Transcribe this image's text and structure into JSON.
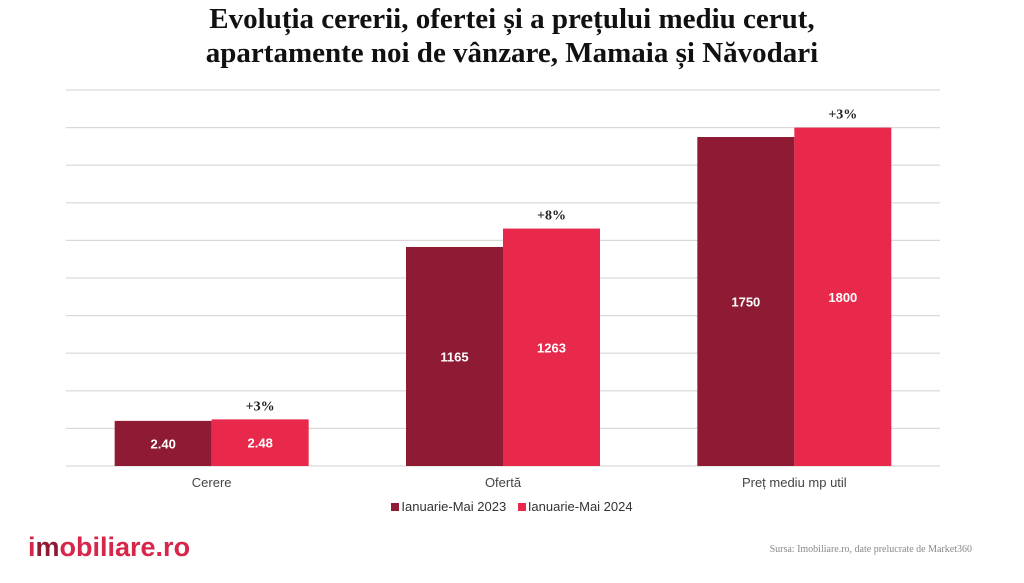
{
  "chart_data": {
    "type": "bar",
    "title_lines": [
      "Evoluția cererii, ofertei și a prețului mediu cerut,",
      "apartamente noi de vânzare, Mamaia și Năvodari"
    ],
    "categories": [
      "Cerere",
      "Ofertă",
      "Preț mediu mp util"
    ],
    "series": [
      {
        "name": "Ianuarie-Mai 2023",
        "color": "#8f1a33",
        "values": [
          2.4,
          1165,
          1750
        ],
        "labels": [
          "2.40",
          "1165",
          "1750"
        ]
      },
      {
        "name": "Ianuarie-Mai 2024",
        "color": "#e8294c",
        "values": [
          2.48,
          1263,
          1800
        ],
        "labels": [
          "2.48",
          "1263",
          "1800"
        ]
      }
    ],
    "annotations": [
      "+3%",
      "+8%",
      "+3%"
    ],
    "ylim": [
      0,
      2000
    ],
    "grid": true,
    "y_tick_labels_shown": false,
    "legend_position": "bottom"
  },
  "footer": {
    "logo": "imobiliare.ro",
    "source": "Sursa: Imobiliare.ro, date prelucrate de Market360"
  }
}
